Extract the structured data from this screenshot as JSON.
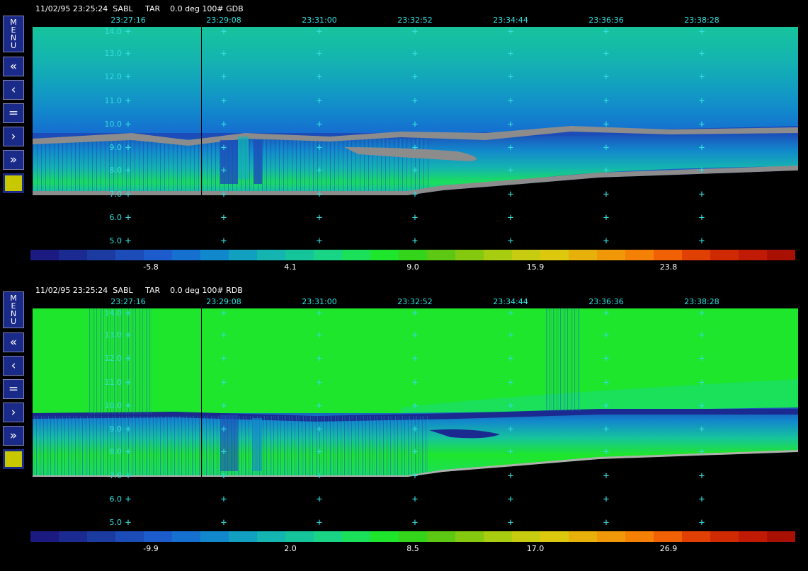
{
  "panels": [
    {
      "id": "gdb",
      "title": "11/02/95 23:25:24  SABL     TAR    0.0 deg 100# GDB",
      "times": [
        "23:27:16",
        "23:29:08",
        "23:31:00",
        "23:32:52",
        "23:34:44",
        "23:36:36",
        "23:38:28"
      ],
      "altitudes": [
        "14.0",
        "13.0",
        "12.0",
        "11.0",
        "10.0",
        "9.0",
        "8.0",
        "7.0",
        "6.0",
        "5.0"
      ],
      "scale_labels": [
        "-5.8",
        "4.1",
        "9.0",
        "15.9",
        "23.8"
      ]
    },
    {
      "id": "rdb",
      "title": "11/02/95 23:25:24  SABL     TAR    0.0 deg 100# RDB",
      "times": [
        "23:27:16",
        "23:29:08",
        "23:31:00",
        "23:32:52",
        "23:34:44",
        "23:36:36",
        "23:38:28"
      ],
      "altitudes": [
        "14.0",
        "13.0",
        "12.0",
        "11.0",
        "10.0",
        "9.0",
        "8.0",
        "7.0",
        "6.0",
        "5.0"
      ],
      "scale_labels": [
        "-9.9",
        "2.0",
        "8.5",
        "17.0",
        "26.9"
      ]
    }
  ],
  "controls": {
    "menu_letters": [
      "M",
      "E",
      "N",
      "U"
    ],
    "fast_back": "«",
    "back": "‹",
    "pause": "=",
    "forward": "›",
    "fast_forward": "»"
  },
  "colors": {
    "palette": [
      "#1a1a80",
      "#1a2a90",
      "#1b3ba0",
      "#1c4cb8",
      "#1c5ccc",
      "#1570d0",
      "#1288cc",
      "#12a0c0",
      "#14b4b0",
      "#16c49c",
      "#18d484",
      "#1ae05a",
      "#1ee62c",
      "#34d41a",
      "#5cc814",
      "#84c810",
      "#a8cc10",
      "#c8cc10",
      "#dcc80c",
      "#e8b00a",
      "#f09808",
      "#f48006",
      "#f06005",
      "#e04004",
      "#d02a04",
      "#c01a04",
      "#a81004"
    ],
    "ground": "#8c8c8c",
    "axis_text": "#33dddd",
    "control_blue": "#1a2a88"
  }
}
